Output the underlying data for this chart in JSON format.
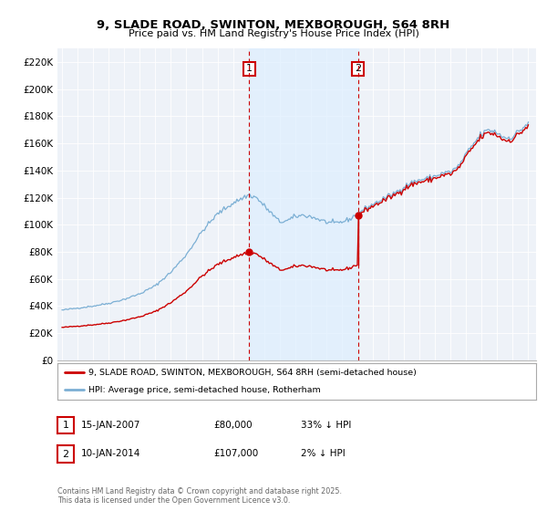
{
  "title1": "9, SLADE ROAD, SWINTON, MEXBOROUGH, S64 8RH",
  "title2": "Price paid vs. HM Land Registry's House Price Index (HPI)",
  "ylim": [
    0,
    230000
  ],
  "yticks": [
    0,
    20000,
    40000,
    60000,
    80000,
    100000,
    120000,
    140000,
    160000,
    180000,
    200000,
    220000
  ],
  "ytick_labels": [
    "£0",
    "£20K",
    "£40K",
    "£60K",
    "£80K",
    "£100K",
    "£120K",
    "£140K",
    "£160K",
    "£180K",
    "£200K",
    "£220K"
  ],
  "sale1_year": 2007.04,
  "sale1_price": 80000,
  "sale2_year": 2014.04,
  "sale2_price": 107000,
  "hpi_line_color": "#7bafd4",
  "price_line_color": "#cc0000",
  "vline_color": "#cc0000",
  "shade_color": "#ddeeff",
  "legend1": "9, SLADE ROAD, SWINTON, MEXBOROUGH, S64 8RH (semi-detached house)",
  "legend2": "HPI: Average price, semi-detached house, Rotherham",
  "table_row1": [
    "1",
    "15-JAN-2007",
    "£80,000",
    "33% ↓ HPI"
  ],
  "table_row2": [
    "2",
    "10-JAN-2014",
    "£107,000",
    "2% ↓ HPI"
  ],
  "footnote": "Contains HM Land Registry data © Crown copyright and database right 2025.\nThis data is licensed under the Open Government Licence v3.0.",
  "background_color": "#ffffff",
  "plot_bg_color": "#eef2f8",
  "xlim_start": 1994.7,
  "xlim_end": 2025.5
}
